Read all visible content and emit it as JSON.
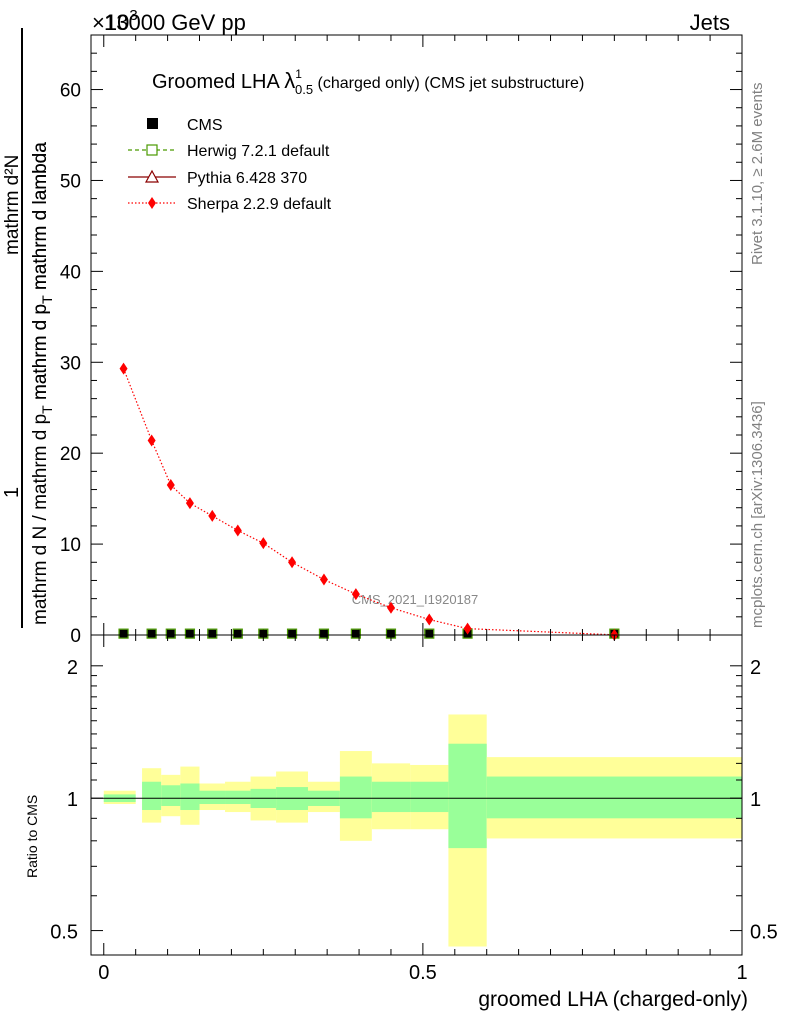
{
  "header": {
    "left": "13000 GeV pp",
    "right": "Jets",
    "exponent": "×10",
    "exponent_sup": "3"
  },
  "side_labels": {
    "rivet": "Rivet 3.1.10, ≥ 2.6M events",
    "mcplots": "mcplots.cern.ch [arXiv:1306.3436]"
  },
  "main_title": {
    "prefix": "Groomed LHA ",
    "lambda": "λ",
    "sup": "1",
    "sub": "0.5",
    "suffix": " (charged only) (CMS jet substructure)"
  },
  "watermark": "CMS_2021_I1920187",
  "y_axis_label": {
    "numerator": "mathrm d²N",
    "numerator_line2": "mathrm d p",
    "numerator_sub": "T",
    "numerator_line3": " mathrm d lambda",
    "one": "1",
    "denominator": "mathrm d N / mathrm d p",
    "denominator_sub": "T",
    "denominator_end": " mathrm d p",
    "denominator_sub2": "T",
    "denominator_tail": " mathrm d lambda"
  },
  "legend": {
    "cms": "CMS",
    "herwig": "Herwig 7.2.1 default",
    "pythia": "Pythia 6.428 370",
    "sherpa": "Sherpa 2.2.9 default"
  },
  "ratio_label": "Ratio to CMS",
  "x_axis_label": "groomed LHA (charged-only)",
  "colors": {
    "herwig": "#4a9a00",
    "pythia": "#8b0000",
    "sherpa": "#ff0000",
    "band_inner": "#99ff99",
    "band_outer": "#ffff99"
  },
  "chart_data": {
    "type": "scatter",
    "title": "Groomed LHA λ^1_0.5 (charged only) (CMS jet substructure)",
    "xlabel": "groomed LHA (charged-only)",
    "ylabel": "1/(mathrm d N / mathrm d p_T mathrm d p_T mathrm d lambda) mathrm d²N/(mathrm d p_T mathrm d lambda)",
    "xlim": [
      -0.02,
      1.0
    ],
    "ylim_main": [
      0,
      66
    ],
    "y_scale_factor": "×10^3",
    "xticks": [
      "0",
      "0.5",
      "1"
    ],
    "yticks_main": [
      "0",
      "10",
      "20",
      "30",
      "40",
      "50",
      "60"
    ],
    "yticks_ratio": [
      "0.5",
      "1",
      "2"
    ],
    "ylim_ratio": [
      0.44,
      2.35
    ],
    "bins": [
      {
        "lo": 0.0,
        "hi": 0.05,
        "x": 0.031,
        "cms": 0.15,
        "inner": [
          0.98,
          1.02
        ],
        "outer": [
          0.97,
          1.04
        ]
      },
      {
        "lo": 0.06,
        "hi": 0.09,
        "x": 0.075,
        "cms": 0.15,
        "inner": [
          0.94,
          1.09
        ],
        "outer": [
          0.88,
          1.17
        ]
      },
      {
        "lo": 0.09,
        "hi": 0.12,
        "x": 0.105,
        "cms": 0.15,
        "inner": [
          0.96,
          1.07
        ],
        "outer": [
          0.91,
          1.13
        ]
      },
      {
        "lo": 0.12,
        "hi": 0.15,
        "x": 0.135,
        "cms": 0.15,
        "inner": [
          0.94,
          1.08
        ],
        "outer": [
          0.87,
          1.18
        ]
      },
      {
        "lo": 0.15,
        "hi": 0.19,
        "x": 0.17,
        "cms": 0.15,
        "inner": [
          0.97,
          1.04
        ],
        "outer": [
          0.94,
          1.08
        ]
      },
      {
        "lo": 0.19,
        "hi": 0.23,
        "x": 0.21,
        "cms": 0.15,
        "inner": [
          0.97,
          1.04
        ],
        "outer": [
          0.93,
          1.09
        ]
      },
      {
        "lo": 0.23,
        "hi": 0.27,
        "x": 0.25,
        "cms": 0.15,
        "inner": [
          0.95,
          1.05
        ],
        "outer": [
          0.89,
          1.12
        ]
      },
      {
        "lo": 0.27,
        "hi": 0.32,
        "x": 0.295,
        "cms": 0.15,
        "inner": [
          0.94,
          1.06
        ],
        "outer": [
          0.88,
          1.15
        ]
      },
      {
        "lo": 0.32,
        "hi": 0.37,
        "x": 0.345,
        "cms": 0.15,
        "inner": [
          0.96,
          1.04
        ],
        "outer": [
          0.93,
          1.09
        ]
      },
      {
        "lo": 0.37,
        "hi": 0.42,
        "x": 0.395,
        "cms": 0.15,
        "inner": [
          0.9,
          1.12
        ],
        "outer": [
          0.8,
          1.28
        ]
      },
      {
        "lo": 0.42,
        "hi": 0.48,
        "x": 0.45,
        "cms": 0.15,
        "inner": [
          0.93,
          1.09
        ],
        "outer": [
          0.85,
          1.2
        ]
      },
      {
        "lo": 0.48,
        "hi": 0.54,
        "x": 0.51,
        "cms": 0.15,
        "inner": [
          0.93,
          1.09
        ],
        "outer": [
          0.85,
          1.19
        ]
      },
      {
        "lo": 0.54,
        "hi": 0.6,
        "x": 0.57,
        "cms": 0.15,
        "inner": [
          0.77,
          1.33
        ],
        "outer": [
          0.46,
          1.55
        ]
      },
      {
        "lo": 0.6,
        "hi": 1.0,
        "x": 0.8,
        "cms": 0.15,
        "inner": [
          0.9,
          1.12
        ],
        "outer": [
          0.81,
          1.24
        ]
      }
    ],
    "series": [
      {
        "name": "CMS",
        "x": [
          0.031,
          0.075,
          0.105,
          0.135,
          0.17,
          0.21,
          0.25,
          0.295,
          0.345,
          0.395,
          0.45,
          0.51,
          0.57,
          0.8
        ],
        "values": [
          0.15,
          0.15,
          0.15,
          0.15,
          0.15,
          0.15,
          0.15,
          0.15,
          0.15,
          0.15,
          0.15,
          0.15,
          0.15,
          0.15
        ]
      },
      {
        "name": "Herwig 7.2.1 default",
        "x": [
          0.031,
          0.075,
          0.105,
          0.135,
          0.17,
          0.21,
          0.25,
          0.295,
          0.345,
          0.395,
          0.45,
          0.51,
          0.57,
          0.8
        ],
        "values": [
          0.15,
          0.15,
          0.15,
          0.15,
          0.15,
          0.15,
          0.15,
          0.15,
          0.15,
          0.15,
          0.15,
          0.15,
          0.15,
          0.15
        ]
      },
      {
        "name": "Pythia 6.428 370",
        "x": [
          0.031,
          0.075,
          0.105,
          0.135,
          0.17,
          0.21,
          0.25,
          0.295,
          0.345,
          0.395,
          0.45,
          0.51,
          0.57,
          0.8
        ],
        "values": [
          0.15,
          0.15,
          0.15,
          0.15,
          0.15,
          0.15,
          0.15,
          0.15,
          0.15,
          0.15,
          0.15,
          0.15,
          0.15,
          0.15
        ]
      },
      {
        "name": "Sherpa 2.2.9 default",
        "x": [
          0.031,
          0.075,
          0.105,
          0.135,
          0.17,
          0.21,
          0.25,
          0.295,
          0.345,
          0.395,
          0.45,
          0.51,
          0.57,
          0.8
        ],
        "values": [
          29.3,
          21.4,
          16.5,
          14.5,
          13.1,
          11.5,
          10.1,
          8.0,
          6.1,
          4.5,
          3.0,
          1.7,
          0.7,
          0.02
        ]
      }
    ]
  }
}
